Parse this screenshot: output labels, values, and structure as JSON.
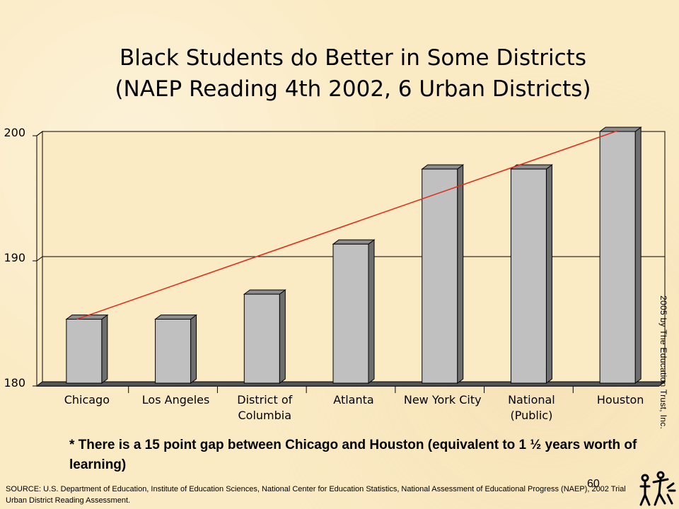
{
  "title_lines": [
    "Black Students do Better in Some Districts",
    "(NAEP Reading 4th 2002, 6 Urban Districts)"
  ],
  "chart_data": {
    "type": "bar",
    "categories": [
      [
        "Chicago"
      ],
      [
        "Los Angeles"
      ],
      [
        "District of",
        "Columbia"
      ],
      [
        "Atlanta"
      ],
      [
        "New York City"
      ],
      [
        "National",
        "(Public)"
      ],
      [
        "Houston"
      ]
    ],
    "values": [
      185,
      185,
      187,
      191,
      197,
      197,
      200
    ],
    "ylim": [
      180,
      200
    ],
    "yticks": [
      180,
      190,
      200
    ],
    "grid": true,
    "bar_color": "#c0c0c0",
    "trend_line": {
      "from_category": "Chicago",
      "to_category": "Houston",
      "color": "#e03020"
    }
  },
  "note": "* There is a 15 point gap between Chicago and Houston (equivalent to 1 ½ years worth of learning)",
  "copyright": "2005 by The Education Trust, Inc.",
  "page_number": "60",
  "source": "SOURCE: U.S. Department of Education, Institute of Education Sciences, National Center for Education Statistics, National Assessment of Educational Progress (NAEP), 2002 Trial Urban District Reading Assessment."
}
